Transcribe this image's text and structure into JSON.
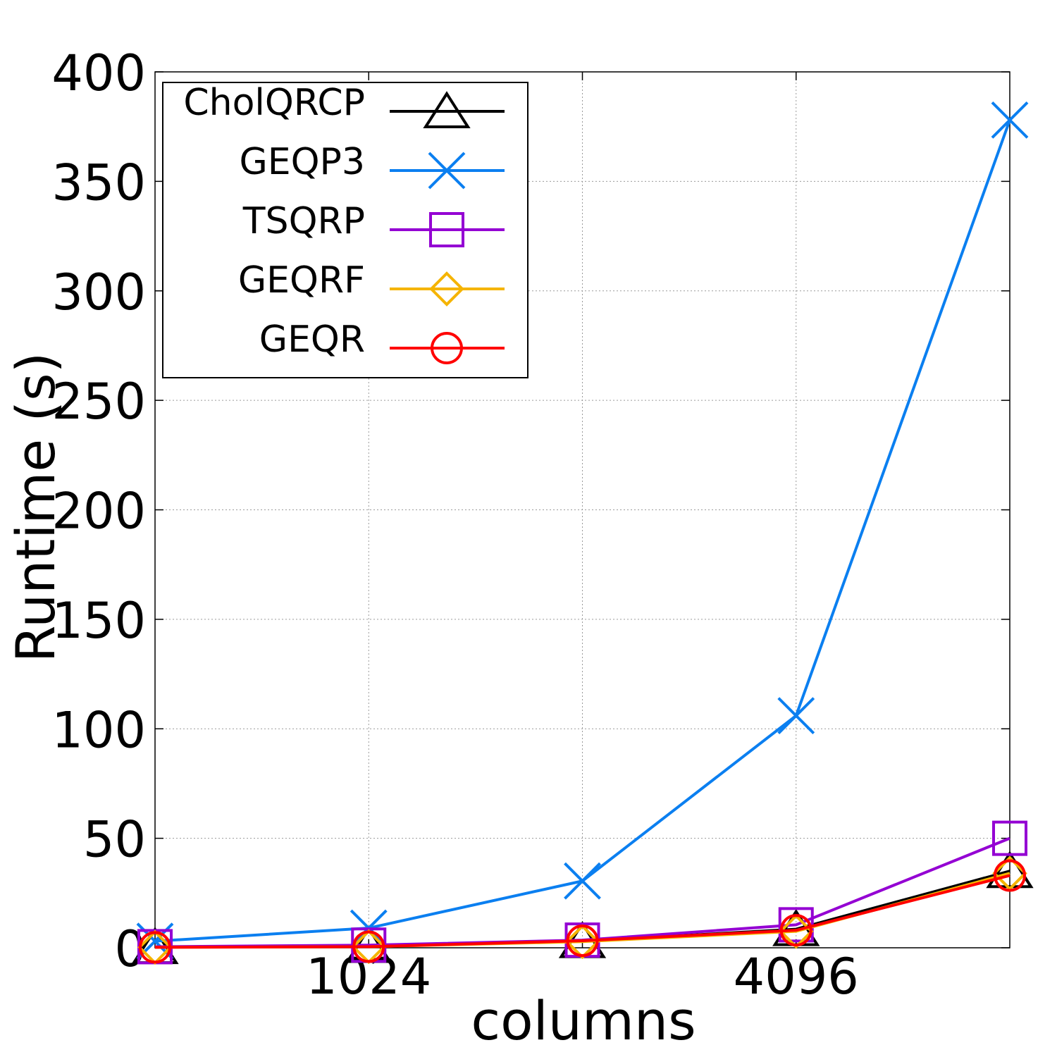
{
  "chart_data": {
    "type": "line",
    "xlabel": "columns",
    "ylabel": "Runtime (s)",
    "x": [
      512,
      1024,
      2048,
      4096,
      8192
    ],
    "x_scale": "log2",
    "xticks": [
      1024,
      4096
    ],
    "xtick_labels": [
      "1024",
      "4096"
    ],
    "ylim": [
      0,
      400
    ],
    "yticks": [
      0,
      50,
      100,
      150,
      200,
      250,
      300,
      350,
      400
    ],
    "ytick_labels": [
      "0",
      "50",
      "100",
      "150",
      "200",
      "250",
      "300",
      "350",
      "400"
    ],
    "grid": true,
    "legend_position": "top-left",
    "series": [
      {
        "name": "CholQRCP",
        "color": "#000000",
        "marker": "triangle",
        "values": [
          0.3,
          0.8,
          3.0,
          8.5,
          35
        ]
      },
      {
        "name": "GEQP3",
        "color": "#0b7ff0",
        "marker": "x",
        "values": [
          3.0,
          9.0,
          30.5,
          106,
          378
        ]
      },
      {
        "name": "TSQRP",
        "color": "#9400d3",
        "marker": "square",
        "values": [
          0.5,
          1.2,
          3.5,
          10.5,
          50
        ]
      },
      {
        "name": "GEQRF",
        "color": "#f5b400",
        "marker": "diamond",
        "values": [
          0.2,
          0.5,
          2.8,
          7.5,
          34
        ]
      },
      {
        "name": "GEQR",
        "color": "#ff0000",
        "marker": "circle",
        "values": [
          0.2,
          0.5,
          3.2,
          8.0,
          33
        ]
      }
    ]
  }
}
